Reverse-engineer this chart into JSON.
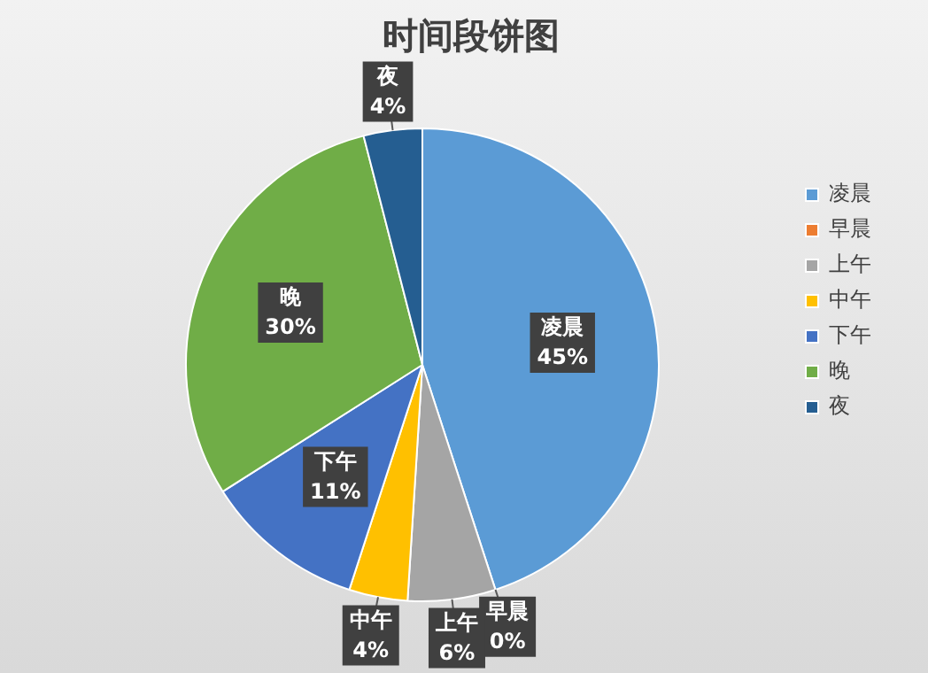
{
  "chart_data": {
    "type": "pie",
    "title": "时间段饼图",
    "categories": [
      "凌晨",
      "早晨",
      "上午",
      "中午",
      "下午",
      "晚",
      "夜"
    ],
    "values": [
      45,
      0,
      6,
      4,
      11,
      30,
      4
    ],
    "colors": [
      "#5b9bd5",
      "#ed7d31",
      "#a5a5a5",
      "#ffc000",
      "#4472c4",
      "#70ad47",
      "#255e91"
    ],
    "value_labels": [
      "45%",
      "0%",
      "6%",
      "4%",
      "11%",
      "30%",
      "4%"
    ],
    "legend": "right"
  }
}
